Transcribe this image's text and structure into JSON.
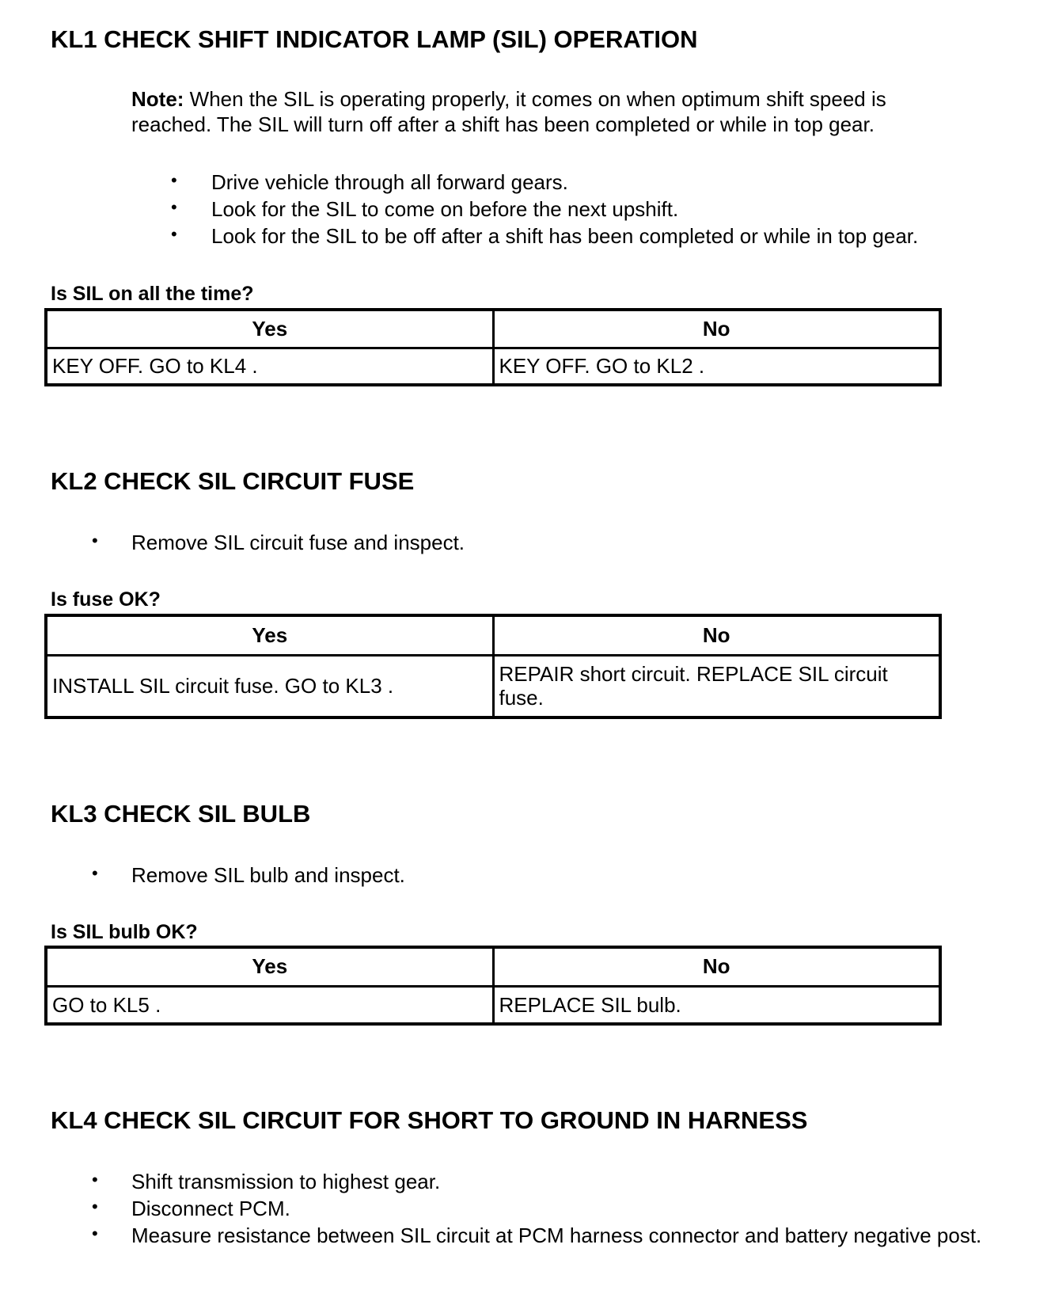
{
  "kl1": {
    "title": "KL1 CHECK SHIFT INDICATOR LAMP (SIL) OPERATION",
    "note_label": "Note:",
    "note_text": " When the SIL is operating properly, it comes on when optimum shift speed is reached. The SIL will turn off after a shift has been completed or while in top gear.",
    "bullets": [
      "Drive vehicle through all forward gears.",
      "Look for the SIL to come on before the next upshift.",
      "Look for the SIL to be off after a shift has been completed or while in top gear."
    ],
    "question": "Is SIL on all the time?",
    "table": {
      "yes": "Yes",
      "no": "No",
      "yes_action": "KEY OFF. GO to KL4 .",
      "no_action": "KEY OFF. GO to KL2 ."
    }
  },
  "kl2": {
    "title": "KL2 CHECK SIL CIRCUIT FUSE",
    "bullets": [
      "Remove SIL circuit fuse and inspect."
    ],
    "question": "Is fuse OK?",
    "table": {
      "yes": "Yes",
      "no": "No",
      "yes_action": "INSTALL SIL circuit fuse. GO to KL3 .",
      "no_action": "REPAIR short circuit. REPLACE SIL circuit fuse."
    }
  },
  "kl3": {
    "title": "KL3 CHECK SIL BULB",
    "bullets": [
      "Remove SIL bulb and inspect."
    ],
    "question": "Is SIL bulb OK?",
    "table": {
      "yes": "Yes",
      "no": "No",
      "yes_action": "GO to KL5 .",
      "no_action": "REPLACE SIL bulb."
    }
  },
  "kl4": {
    "title": "KL4 CHECK SIL CIRCUIT FOR SHORT TO GROUND IN HARNESS",
    "bullets": [
      "Shift transmission to highest gear.",
      "Disconnect PCM.",
      "Measure resistance between SIL circuit at PCM harness connector and battery negative post."
    ]
  },
  "bullet_glyph": "•"
}
